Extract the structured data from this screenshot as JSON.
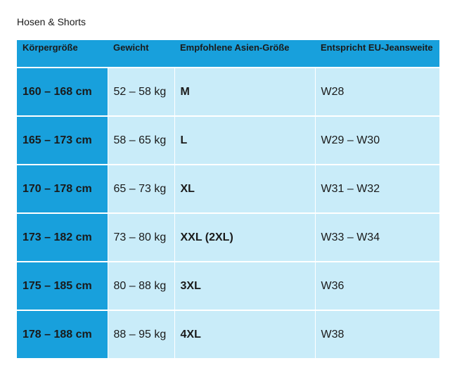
{
  "header": {
    "title": "Hosen & Shorts"
  },
  "table": {
    "columns": [
      "Körpergröße",
      "Gewicht",
      "Empfohlene Asien-Größe",
      "Entspricht EU-Jeansweite"
    ],
    "rows": [
      [
        "160 – 168 cm",
        "52 – 58 kg",
        "M",
        "W28"
      ],
      [
        "165 – 173 cm",
        "58 – 65 kg",
        "L",
        "W29 – W30"
      ],
      [
        "170 – 178 cm",
        "65 – 73 kg",
        "XL",
        "W31 – W32"
      ],
      [
        "173 – 182 cm",
        "73 – 80 kg",
        "XXL (2XL)",
        "W33 – W34"
      ],
      [
        "175 – 185 cm",
        "80 – 88 kg",
        "3XL",
        "W36"
      ],
      [
        "178 – 188 cm",
        "88 – 95 kg",
        "4XL",
        "W38"
      ]
    ]
  }
}
